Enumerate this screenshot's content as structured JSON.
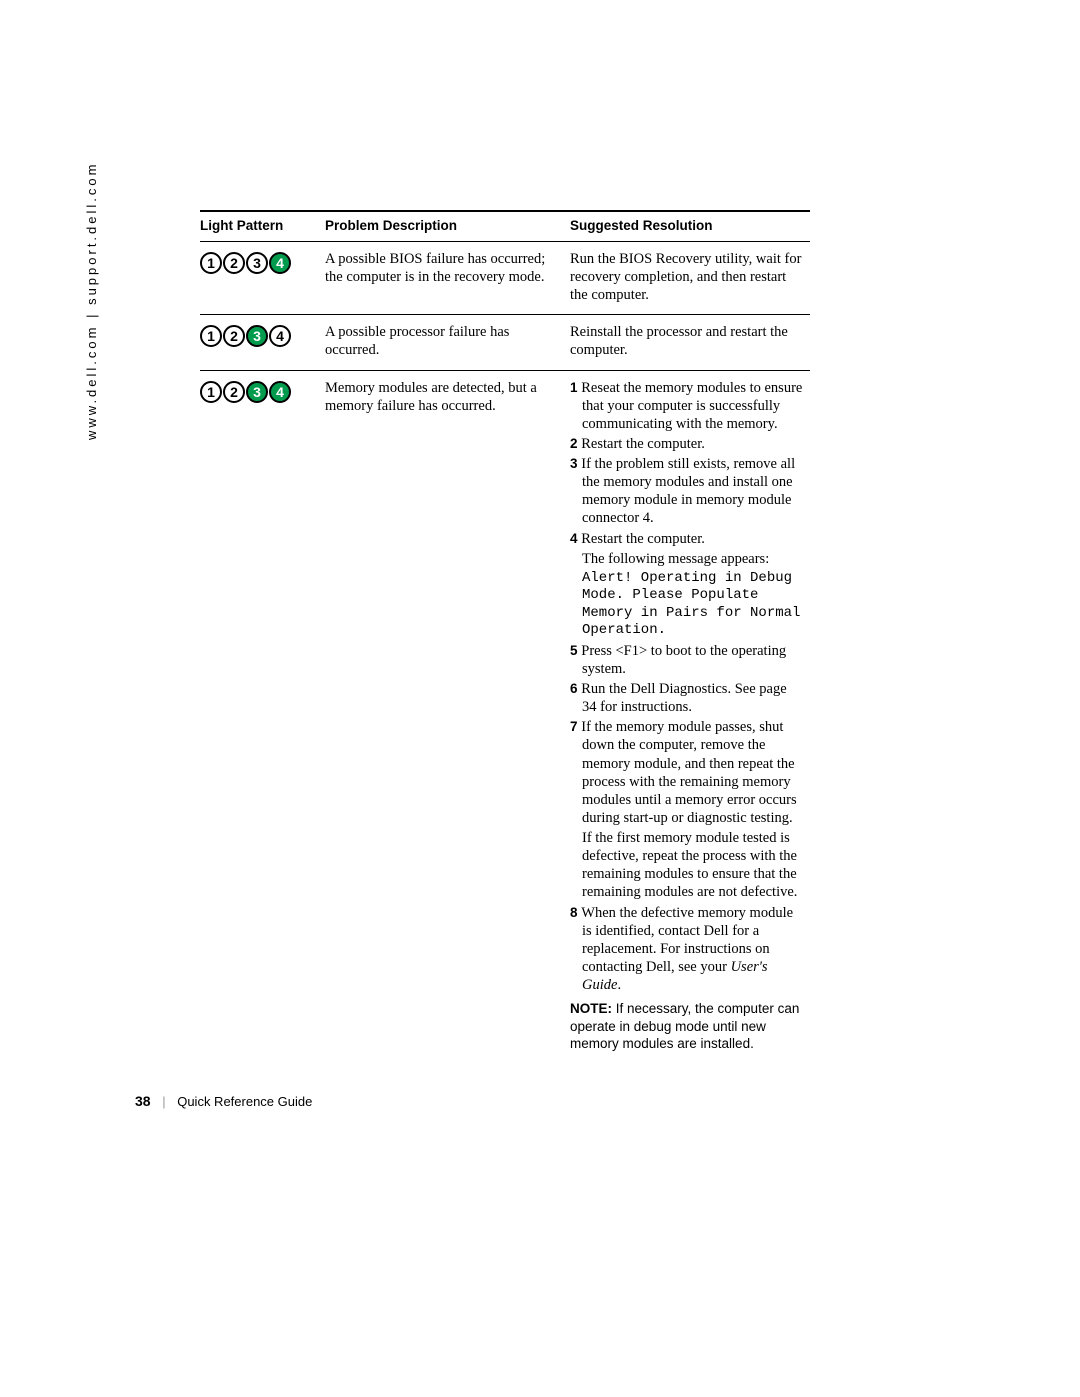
{
  "side_text": "www.dell.com | support.dell.com",
  "footer": {
    "page_number": "38",
    "title": "Quick Reference Guide"
  },
  "light_colors": {
    "on_bg": "#009b4c",
    "on_fg": "#ffffff",
    "off_bg": "#ffffff",
    "off_fg": "#000000",
    "border": "#000000"
  },
  "table": {
    "headers": {
      "light": "Light Pattern",
      "desc": "Problem Description",
      "res": "Suggested Resolution"
    },
    "rows": [
      {
        "lights": [
          {
            "n": "1",
            "on": false
          },
          {
            "n": "2",
            "on": false
          },
          {
            "n": "3",
            "on": false
          },
          {
            "n": "4",
            "on": true
          }
        ],
        "desc": "A possible BIOS failure has occurred; the computer is in the recovery mode.",
        "res_plain": "Run the BIOS Recovery utility, wait for recovery completion, and then restart the computer."
      },
      {
        "lights": [
          {
            "n": "1",
            "on": false
          },
          {
            "n": "2",
            "on": false
          },
          {
            "n": "3",
            "on": true
          },
          {
            "n": "4",
            "on": false
          }
        ],
        "desc": "A possible processor failure has occurred.",
        "res_plain": "Reinstall the processor and restart the computer."
      },
      {
        "lights": [
          {
            "n": "1",
            "on": false
          },
          {
            "n": "2",
            "on": false
          },
          {
            "n": "3",
            "on": true
          },
          {
            "n": "4",
            "on": true
          }
        ],
        "desc": "Memory modules are detected, but a memory failure has occurred.",
        "res_steps": {
          "s1": "Reseat the memory modules to ensure that your computer is successfully communicating with the memory.",
          "s2": "Restart the computer.",
          "s3": "If the problem still exists, remove all the memory modules and install one memory module in memory module connector 4.",
          "s4": "Restart the computer.",
          "s4_msg_intro": "The following message appears:",
          "s4_msg": "Alert! Operating in Debug Mode. Please Populate Memory in Pairs for Normal Operation.",
          "s5": "Press <F1> to boot to the operating system.",
          "s6": "Run the Dell Diagnostics. See page 34 for instructions.",
          "s7": "If the memory module passes, shut down the computer, remove the memory module, and then repeat the process with the remaining memory modules until a memory error occurs during start-up or diagnostic testing.",
          "s7b": "If the first memory module tested is defective, repeat the process with the remaining modules to ensure that the remaining modules are not defective.",
          "s8a": "When the defective memory module is identified, contact Dell for a replacement. For instructions on contacting Dell, see your ",
          "s8b": "User's Guide",
          "s8c": ".",
          "note_label": "NOTE:",
          "note_body": " If necessary, the computer can operate in debug mode until new memory modules are installed."
        }
      }
    ]
  }
}
